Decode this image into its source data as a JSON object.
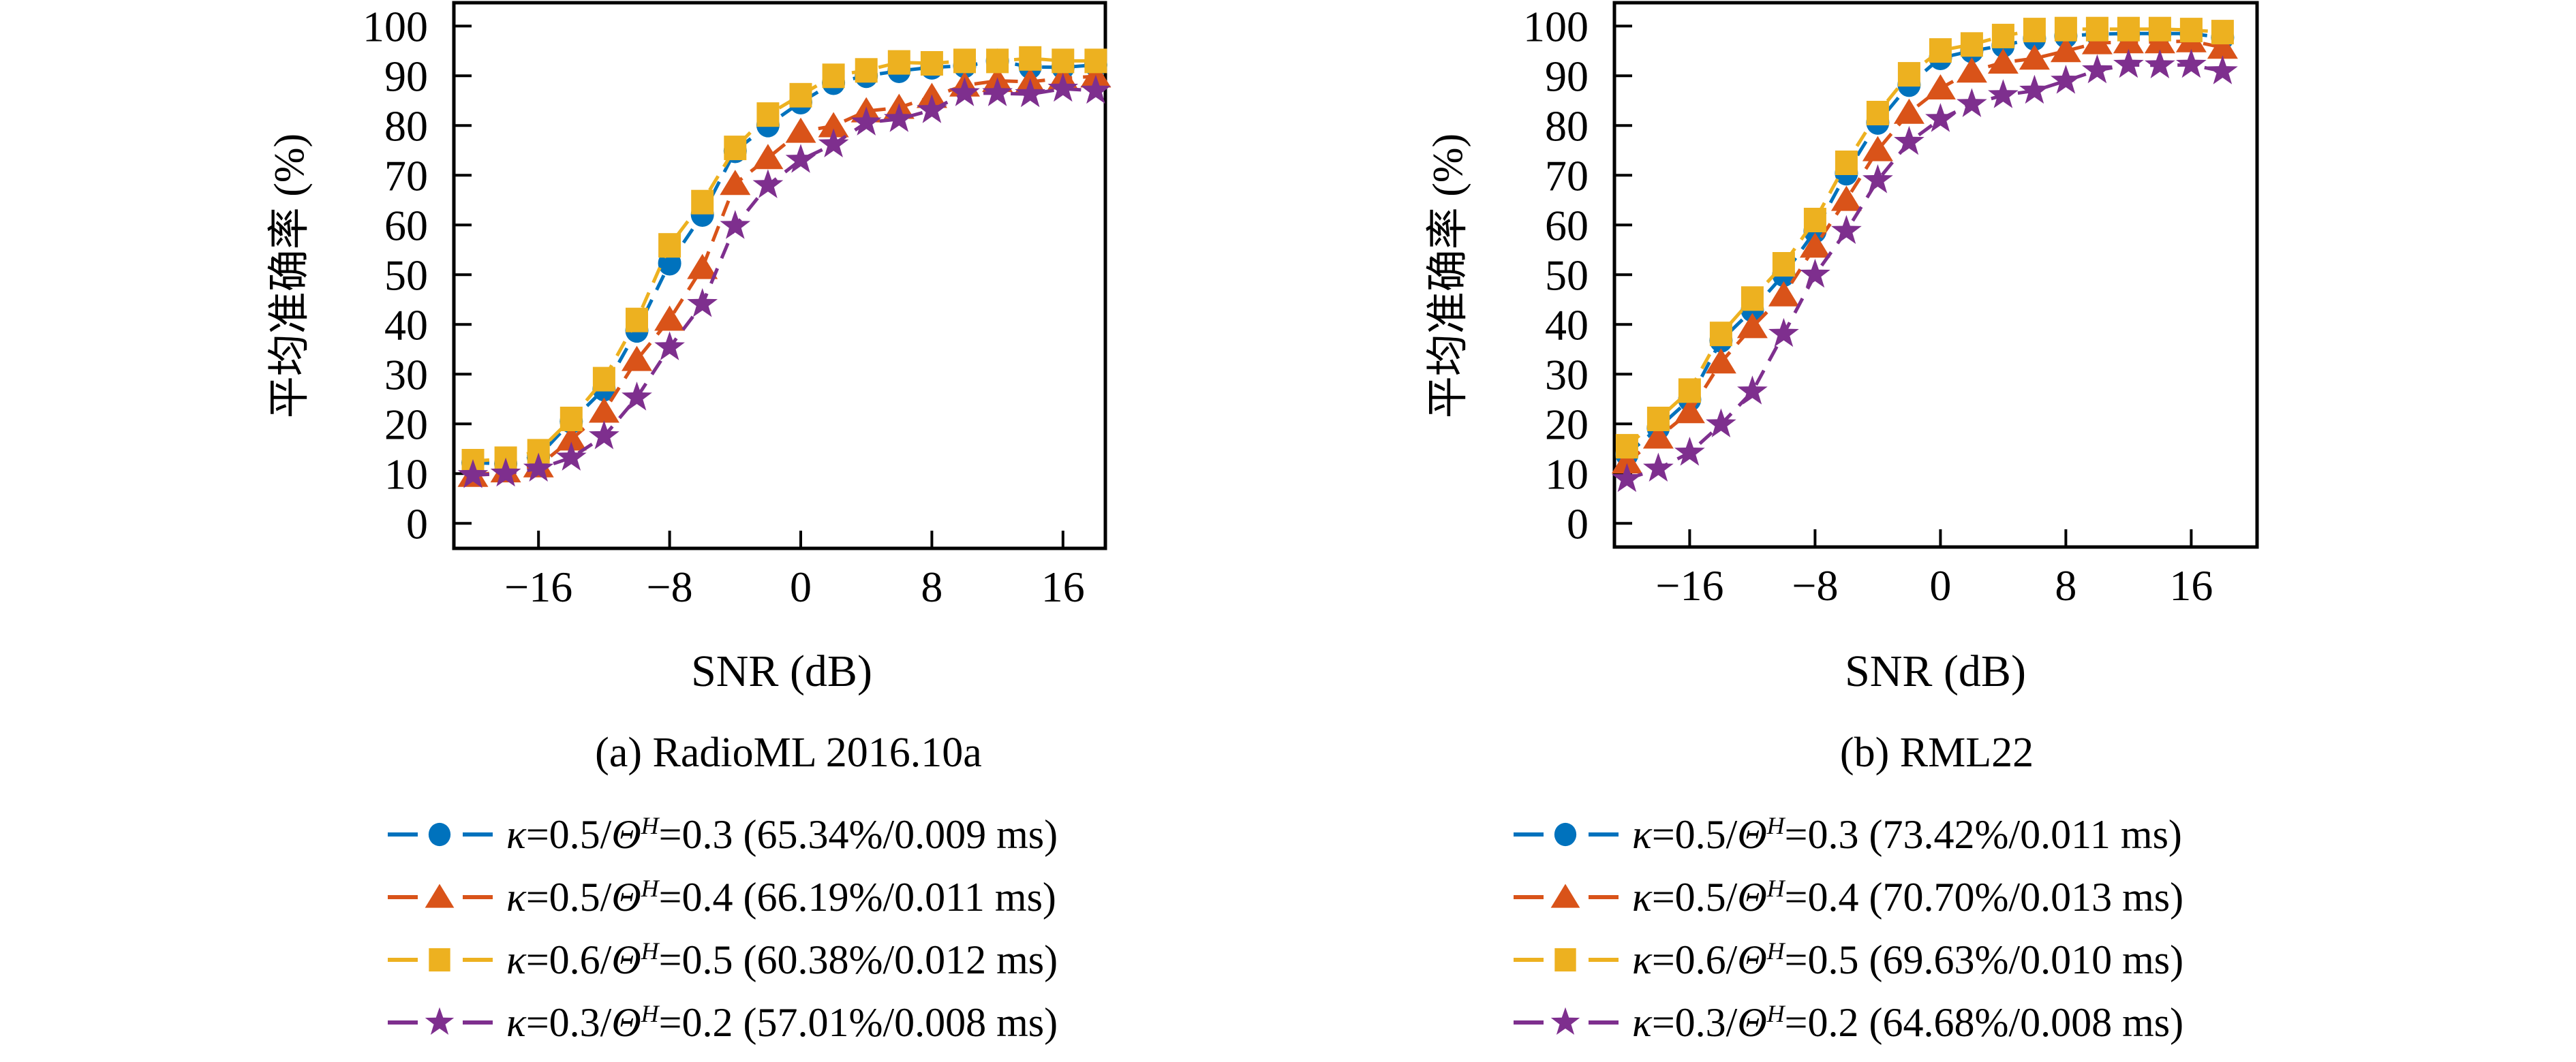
{
  "figure": {
    "ylabel": "平均准确率 (%)",
    "xlabel": "SNR (dB)"
  },
  "palette": {
    "blue": "#0072BD",
    "orange": "#D95319",
    "yellow": "#EDB120",
    "purple": "#7E2F8E"
  },
  "chart_data": [
    {
      "type": "line",
      "caption": "(a) RadioML 2016.10a",
      "xlabel": "SNR (dB)",
      "ylabel": "平均准确率 (%)",
      "grid": false,
      "legend_position": "below",
      "xlim": [
        -21,
        19
      ],
      "ylim": [
        -5,
        105
      ],
      "x_ticks": [
        -16,
        -8,
        0,
        8,
        16
      ],
      "x_tick_labels": [
        "−16",
        "−8",
        "0",
        "8",
        "16"
      ],
      "y_ticks": [
        0,
        10,
        20,
        30,
        40,
        50,
        60,
        70,
        80,
        90,
        100
      ],
      "y_tick_labels": [
        "0",
        "10",
        "20",
        "30",
        "40",
        "50",
        "60",
        "70",
        "80",
        "90",
        "100"
      ],
      "x": [
        -20,
        -18,
        -16,
        -14,
        -12,
        -10,
        -8,
        -6,
        -4,
        -2,
        0,
        2,
        4,
        6,
        8,
        10,
        12,
        14,
        16,
        18
      ],
      "series": [
        {
          "label": "κ=0.5/Θ^H=0.3 (65.34%/0.009 ms)",
          "kappa": "0.5",
          "theta_h": "0.3",
          "stats": "(65.34%/0.009 ms)",
          "marker": "circle",
          "color": "#0072BD",
          "values": [
            12.2,
            12.0,
            13.5,
            20.5,
            27.0,
            38.8,
            52.3,
            62.1,
            74.9,
            80.1,
            84.7,
            88.6,
            90.0,
            91.0,
            91.7,
            92.0,
            93.0,
            91.8,
            91.7,
            92.2
          ]
        },
        {
          "label": "κ=0.5/Θ^H=0.4 (66.19%/0.011 ms)",
          "kappa": "0.5",
          "theta_h": "0.4",
          "stats": "(66.19%/0.011 ms)",
          "marker": "triangle",
          "color": "#D95319",
          "values": [
            9.6,
            10.5,
            11.5,
            16.9,
            22.5,
            32.9,
            41.0,
            51.4,
            68.3,
            73.5,
            78.8,
            79.9,
            82.9,
            83.6,
            85.8,
            88.1,
            89.0,
            88.8,
            89.5,
            89.9
          ]
        },
        {
          "label": "κ=0.6/Θ^H=0.5 (60.38%/0.012 ms)",
          "kappa": "0.6",
          "theta_h": "0.5",
          "stats": "(60.38%/0.012 ms)",
          "marker": "square",
          "color": "#EDB120",
          "values": [
            12.5,
            13.0,
            14.5,
            21.0,
            29.0,
            40.9,
            55.9,
            64.6,
            75.5,
            82.2,
            86.1,
            90.0,
            91.1,
            92.7,
            92.5,
            93.0,
            93.0,
            93.5,
            93.0,
            93.0
          ]
        },
        {
          "label": "κ=0.3/Θ^H=0.2 (57.01%/0.008 ms)",
          "kappa": "0.3",
          "theta_h": "0.2",
          "stats": "(57.01%/0.008 ms)",
          "marker": "star",
          "color": "#7E2F8E",
          "values": [
            9.7,
            10.0,
            11.0,
            13.2,
            17.5,
            25.3,
            35.4,
            44.1,
            59.8,
            68.0,
            73.1,
            76.2,
            80.6,
            81.3,
            83.1,
            86.5,
            86.5,
            86.3,
            87.4,
            87.0
          ]
        }
      ]
    },
    {
      "type": "line",
      "caption": "(b) RML22",
      "xlabel": "SNR (dB)",
      "ylabel": "平均准确率 (%)",
      "grid": false,
      "legend_position": "below",
      "xlim": [
        -21,
        20
      ],
      "ylim": [
        -5,
        105
      ],
      "x_ticks": [
        -16,
        -8,
        0,
        8,
        16
      ],
      "x_tick_labels": [
        "−16",
        "−8",
        "0",
        "8",
        "16"
      ],
      "y_ticks": [
        0,
        10,
        20,
        30,
        40,
        50,
        60,
        70,
        80,
        90,
        100
      ],
      "y_tick_labels": [
        "0",
        "10",
        "20",
        "30",
        "40",
        "50",
        "60",
        "70",
        "80",
        "90",
        "100"
      ],
      "x": [
        -20,
        -18,
        -16,
        -14,
        -12,
        -10,
        -8,
        -6,
        -4,
        -2,
        0,
        2,
        4,
        6,
        8,
        10,
        12,
        14,
        16,
        18
      ],
      "series": [
        {
          "label": "κ=0.5/Θ^H=0.3 (73.42%/0.011 ms)",
          "kappa": "0.5",
          "theta_h": "0.3",
          "stats": "(73.42%/0.011 ms)",
          "marker": "circle",
          "color": "#0072BD",
          "values": [
            13.9,
            19.2,
            24.9,
            36.8,
            42.9,
            50.0,
            58.8,
            70.4,
            80.6,
            88.2,
            93.6,
            95.0,
            96.1,
            97.5,
            98.0,
            98.4,
            98.5,
            98.5,
            98.5,
            97.7
          ]
        },
        {
          "label": "κ=0.5/Θ^H=0.4 (70.70%/0.013 ms)",
          "kappa": "0.5",
          "theta_h": "0.4",
          "stats": "(70.70%/0.013 ms)",
          "marker": "triangle",
          "color": "#D95319",
          "values": [
            12.3,
            17.3,
            22.4,
            32.4,
            39.5,
            45.9,
            55.7,
            65.1,
            75.1,
            82.6,
            87.5,
            90.9,
            92.7,
            93.5,
            95.0,
            96.6,
            96.8,
            96.8,
            97.0,
            95.7
          ]
        },
        {
          "label": "κ=0.6/Θ^H=0.5 (69.63%/0.010 ms)",
          "kappa": "0.6",
          "theta_h": "0.5",
          "stats": "(69.63%/0.010 ms)",
          "marker": "square",
          "color": "#EDB120",
          "values": [
            15.5,
            21.0,
            26.7,
            38.1,
            45.2,
            52.1,
            61.0,
            72.5,
            82.5,
            90.3,
            95.1,
            96.3,
            98.0,
            99.2,
            99.4,
            99.4,
            99.4,
            99.4,
            99.2,
            98.8
          ]
        },
        {
          "label": "κ=0.3/Θ^H=0.2 (64.68%/0.008 ms)",
          "kappa": "0.3",
          "theta_h": "0.2",
          "stats": "(64.68%/0.008 ms)",
          "marker": "star",
          "color": "#7E2F8E",
          "values": [
            8.9,
            11.0,
            14.2,
            19.9,
            26.5,
            38.1,
            50.0,
            58.8,
            69.0,
            76.7,
            81.3,
            84.3,
            86.1,
            87.0,
            89.0,
            91.1,
            92.2,
            92.1,
            92.2,
            90.9
          ]
        }
      ]
    }
  ]
}
